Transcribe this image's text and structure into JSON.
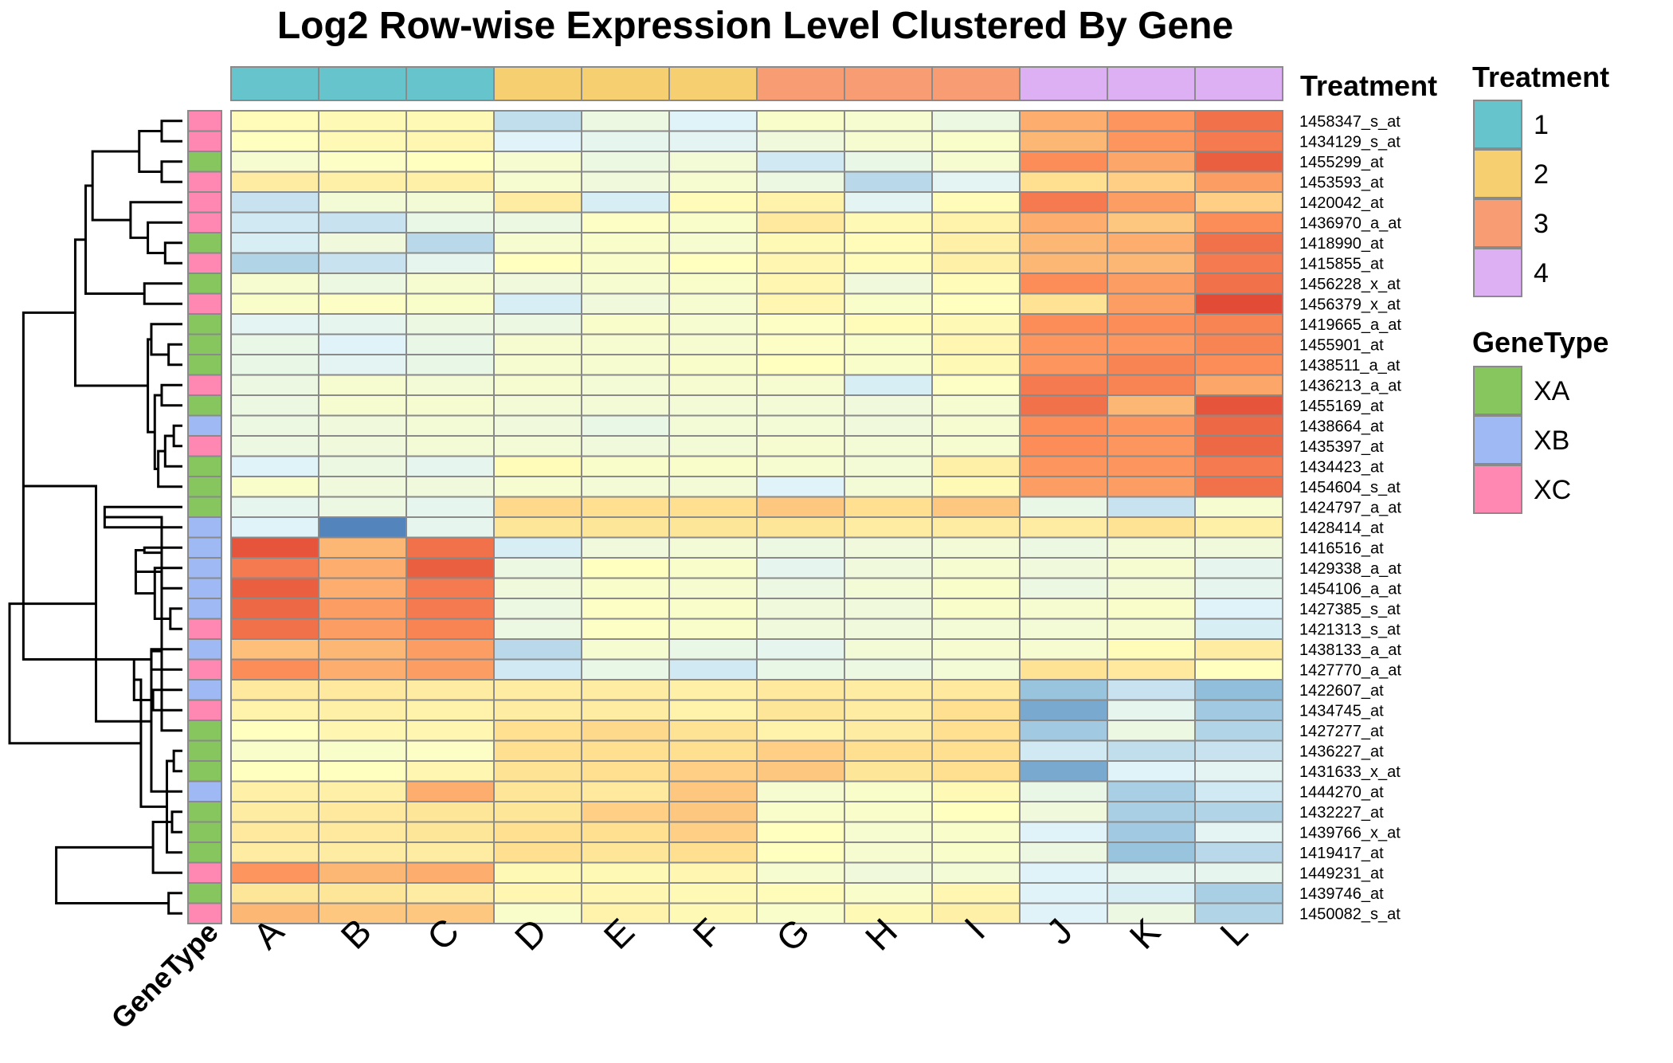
{
  "chart_data": {
    "type": "heatmap",
    "title": "Log2 Row-wise Expression Level Clustered By Gene",
    "columns": [
      "A",
      "B",
      "C",
      "D",
      "E",
      "F",
      "G",
      "H",
      "I",
      "J",
      "K",
      "L"
    ],
    "rows": [
      "1458347_s_at",
      "1434129_s_at",
      "1455299_at",
      "1453593_at",
      "1420042_at",
      "1436970_a_at",
      "1418990_at",
      "1415855_at",
      "1456228_x_at",
      "1456379_x_at",
      "1419665_a_at",
      "1455901_at",
      "1438511_a_at",
      "1436213_a_at",
      "1455169_at",
      "1438664_at",
      "1435397_at",
      "1434423_at",
      "1454604_s_at",
      "1424797_a_at",
      "1428414_at",
      "1416516_at",
      "1429338_a_at",
      "1454106_a_at",
      "1427385_s_at",
      "1421313_s_at",
      "1438133_a_at",
      "1427770_a_at",
      "1422607_at",
      "1434745_at",
      "1427277_at",
      "1436227_at",
      "1431633_x_at",
      "1444270_at",
      "1432227_at",
      "1439766_x_at",
      "1419417_at",
      "1449231_at",
      "1439746_at",
      "1450082_s_at"
    ],
    "value_range": [
      -3,
      3
    ],
    "values": [
      [
        0.1,
        0.2,
        0.2,
        -1.4,
        -0.6,
        -1.0,
        -0.2,
        -0.3,
        -0.6,
        1.6,
        1.9,
        2.3
      ],
      [
        0.0,
        0.2,
        0.3,
        -1.0,
        -0.8,
        -0.9,
        -0.5,
        -0.3,
        -0.2,
        1.5,
        1.9,
        2.2
      ],
      [
        -0.3,
        -0.1,
        0.0,
        -0.3,
        -0.6,
        -0.4,
        -1.2,
        -0.7,
        -0.3,
        2.0,
        1.7,
        2.5
      ],
      [
        0.6,
        0.5,
        0.5,
        -0.3,
        -0.5,
        -0.3,
        -0.6,
        -1.5,
        -0.9,
        1.0,
        1.2,
        1.8
      ],
      [
        -1.3,
        -0.4,
        -0.4,
        0.6,
        -1.1,
        0.1,
        0.4,
        -0.9,
        0.1,
        2.2,
        1.8,
        1.2
      ],
      [
        -1.2,
        -1.3,
        -0.7,
        -0.6,
        -0.1,
        -0.2,
        0.7,
        0.2,
        0.4,
        1.6,
        1.3,
        2.0
      ],
      [
        -1.1,
        -0.5,
        -1.5,
        -0.3,
        -0.2,
        -0.3,
        0.2,
        0.1,
        0.5,
        1.5,
        1.6,
        2.3
      ],
      [
        -1.6,
        -1.3,
        -0.8,
        0.0,
        -0.2,
        0.0,
        0.3,
        0.1,
        0.5,
        1.5,
        1.5,
        2.2
      ],
      [
        -0.3,
        -0.6,
        -0.3,
        -0.5,
        -0.3,
        -0.2,
        0.3,
        -0.5,
        0.1,
        2.0,
        1.8,
        2.3
      ],
      [
        -0.2,
        -0.1,
        -0.2,
        -1.1,
        -0.5,
        -0.3,
        0.3,
        -0.2,
        0.0,
        0.9,
        1.8,
        2.7
      ],
      [
        -0.9,
        -0.8,
        -0.6,
        -0.6,
        -0.2,
        -0.3,
        -0.1,
        0.1,
        0.2,
        2.0,
        2.0,
        2.1
      ],
      [
        -0.7,
        -1.0,
        -0.7,
        -0.3,
        -0.3,
        -0.3,
        -0.1,
        -0.2,
        0.3,
        1.9,
        1.9,
        2.1
      ],
      [
        -0.7,
        -0.9,
        -0.7,
        -0.3,
        -0.3,
        -0.2,
        0.0,
        -0.2,
        0.2,
        1.9,
        2.1,
        2.0
      ],
      [
        -0.6,
        -0.3,
        -0.4,
        -0.3,
        -0.4,
        -0.3,
        -0.3,
        -1.1,
        -0.1,
        2.2,
        2.1,
        1.7
      ],
      [
        -0.6,
        -0.3,
        -0.3,
        -0.4,
        -0.4,
        -0.4,
        -0.4,
        -0.5,
        -0.3,
        2.3,
        1.5,
        2.6
      ],
      [
        -0.6,
        -0.5,
        -0.4,
        -0.5,
        -0.7,
        -0.4,
        -0.4,
        -0.5,
        -0.3,
        2.0,
        1.9,
        2.4
      ],
      [
        -0.6,
        -0.5,
        -0.4,
        -0.4,
        -0.5,
        -0.4,
        -0.3,
        -0.4,
        -0.3,
        2.0,
        1.9,
        2.4
      ],
      [
        -1.0,
        -0.6,
        -0.8,
        0.1,
        -0.2,
        -0.2,
        -0.3,
        -0.4,
        0.5,
        1.9,
        1.9,
        2.2
      ],
      [
        -0.2,
        -0.5,
        -0.5,
        -0.3,
        -0.4,
        -0.4,
        -1.0,
        -0.4,
        0.2,
        1.8,
        1.8,
        2.3
      ],
      [
        -0.8,
        -0.6,
        -0.8,
        1.1,
        1.0,
        1.0,
        1.3,
        1.0,
        1.3,
        -0.7,
        -1.3,
        -0.3
      ],
      [
        -1.0,
        -2.8,
        -0.8,
        0.8,
        0.8,
        0.8,
        0.8,
        0.6,
        0.6,
        0.6,
        0.9,
        0.5
      ],
      [
        2.6,
        1.5,
        2.3,
        -1.1,
        -0.5,
        -0.4,
        -0.6,
        -0.5,
        -0.4,
        -0.6,
        -0.4,
        -0.5
      ],
      [
        2.2,
        1.6,
        2.5,
        -0.6,
        0.0,
        -0.2,
        -0.8,
        -0.5,
        -0.3,
        -0.5,
        -0.3,
        -0.8
      ],
      [
        2.5,
        1.6,
        2.2,
        -0.5,
        -0.2,
        -0.3,
        -0.6,
        -0.4,
        -0.2,
        -0.6,
        -0.4,
        -0.8
      ],
      [
        2.4,
        1.8,
        2.2,
        -0.6,
        -0.1,
        -0.2,
        -0.5,
        -0.5,
        -0.2,
        -0.3,
        -0.2,
        -1.0
      ],
      [
        2.3,
        1.8,
        2.1,
        -0.6,
        -0.1,
        -0.2,
        -0.5,
        -0.5,
        -0.4,
        -0.4,
        -0.3,
        -1.1
      ],
      [
        1.4,
        1.5,
        1.8,
        -1.5,
        -0.3,
        -0.7,
        -0.8,
        -0.4,
        -0.3,
        -0.3,
        0.1,
        0.6
      ],
      [
        2.0,
        1.6,
        1.8,
        -1.2,
        -0.7,
        -1.2,
        -0.7,
        -0.6,
        -0.4,
        0.9,
        0.7,
        0.0
      ],
      [
        0.7,
        0.7,
        0.6,
        0.6,
        0.6,
        0.5,
        0.7,
        0.6,
        0.7,
        -1.9,
        -1.3,
        -2.0
      ],
      [
        0.4,
        0.5,
        0.4,
        0.6,
        0.6,
        0.4,
        0.8,
        0.6,
        1.0,
        -2.3,
        -0.8,
        -1.8
      ],
      [
        0.0,
        0.3,
        0.3,
        1.0,
        1.1,
        0.9,
        0.4,
        0.6,
        1.0,
        -1.8,
        -0.6,
        -1.6
      ],
      [
        -0.2,
        -0.2,
        -0.1,
        1.0,
        1.0,
        1.0,
        1.2,
        1.0,
        1.0,
        -1.2,
        -1.4,
        -1.3
      ],
      [
        0.0,
        0.0,
        0.3,
        0.9,
        1.0,
        1.2,
        1.3,
        0.8,
        1.0,
        -2.3,
        -1.0,
        -0.9
      ],
      [
        0.5,
        0.5,
        1.6,
        0.8,
        0.7,
        1.3,
        -0.3,
        -0.2,
        0.2,
        -0.7,
        -1.7,
        -1.2
      ],
      [
        0.6,
        0.7,
        0.8,
        0.8,
        1.2,
        1.3,
        -0.2,
        -0.2,
        0.0,
        -0.5,
        -1.7,
        -1.6
      ],
      [
        0.7,
        0.7,
        0.8,
        1.0,
        1.0,
        1.2,
        0.0,
        -0.3,
        -0.2,
        -1.0,
        -1.8,
        -0.9
      ],
      [
        0.6,
        0.6,
        0.6,
        1.0,
        0.8,
        1.0,
        0.0,
        -0.3,
        -0.2,
        -0.6,
        -1.9,
        -1.5
      ],
      [
        1.9,
        1.5,
        1.6,
        0.2,
        0.2,
        0.3,
        -0.3,
        -0.5,
        -0.4,
        -1.0,
        -0.8,
        -0.8
      ],
      [
        0.8,
        0.8,
        0.6,
        0.3,
        0.3,
        0.2,
        0.1,
        -0.2,
        0.3,
        -1.0,
        -1.1,
        -1.7
      ],
      [
        1.5,
        1.3,
        1.3,
        -0.2,
        0.4,
        0.2,
        -0.2,
        0.2,
        0.5,
        -1.0,
        -0.6,
        -1.6
      ]
    ],
    "treatment": {
      "label": "Treatment",
      "values": [
        "1",
        "1",
        "1",
        "2",
        "2",
        "2",
        "3",
        "3",
        "3",
        "4",
        "4",
        "4"
      ],
      "legend": [
        {
          "name": "1",
          "color": "#66C5CC"
        },
        {
          "name": "2",
          "color": "#F6CF71"
        },
        {
          "name": "3",
          "color": "#F89C74"
        },
        {
          "name": "4",
          "color": "#DCB0F2"
        }
      ]
    },
    "genetype": {
      "label": "GeneType",
      "values": [
        "XC",
        "XC",
        "XA",
        "XC",
        "XC",
        "XC",
        "XA",
        "XC",
        "XA",
        "XC",
        "XA",
        "XA",
        "XA",
        "XC",
        "XA",
        "XB",
        "XC",
        "XA",
        "XA",
        "XA",
        "XB",
        "XB",
        "XB",
        "XB",
        "XB",
        "XC",
        "XB",
        "XC",
        "XB",
        "XC",
        "XA",
        "XA",
        "XA",
        "XB",
        "XA",
        "XA",
        "XA",
        "XC",
        "XA",
        "XC"
      ],
      "legend": [
        {
          "name": "XA",
          "color": "#87C55F"
        },
        {
          "name": "XB",
          "color": "#9EB9F3"
        },
        {
          "name": "XC",
          "color": "#FE88B1"
        }
      ]
    },
    "palette": [
      "#4575B4",
      "#91BFDB",
      "#E0F3F8",
      "#FFFFBF",
      "#FEE090",
      "#FC8D59",
      "#D73027"
    ],
    "dendrogram": {
      "type": "rows",
      "merges": [
        [
          0,
          1,
          0.12
        ],
        [
          2,
          3,
          0.12
        ],
        [
          40,
          41,
          0.25
        ],
        [
          6,
          7,
          0.1
        ],
        [
          5,
          43,
          0.2
        ],
        [
          4,
          44,
          0.3
        ],
        [
          42,
          45,
          0.52
        ],
        [
          8,
          9,
          0.22
        ],
        [
          46,
          47,
          0.56
        ],
        [
          11,
          12,
          0.08
        ],
        [
          10,
          49,
          0.18
        ],
        [
          13,
          14,
          0.12
        ],
        [
          15,
          16,
          0.05
        ],
        [
          52,
          17,
          0.1
        ],
        [
          53,
          18,
          0.14
        ],
        [
          51,
          54,
          0.16
        ],
        [
          50,
          55,
          0.2
        ],
        [
          48,
          56,
          0.62
        ],
        [
          19,
          20,
          0.45
        ],
        [
          24,
          25,
          0.07
        ],
        [
          23,
          58,
          0.12
        ],
        [
          22,
          59,
          0.16
        ],
        [
          21,
          60,
          0.22
        ],
        [
          26,
          27,
          0.18
        ],
        [
          61,
          62,
          0.27
        ],
        [
          57,
          63,
          0.92
        ],
        [
          28,
          29,
          0.17
        ],
        [
          31,
          32,
          0.05
        ],
        [
          30,
          64,
          0.12
        ],
        [
          63,
          66,
          0.28
        ],
        [
          34,
          35,
          0.06
        ],
        [
          67,
          36,
          0.09
        ],
        [
          33,
          68,
          0.18
        ],
        [
          38,
          39,
          0.08
        ],
        [
          37,
          70,
          0.17
        ],
        [
          69,
          71,
          0.24
        ],
        [
          65,
          72,
          0.5
        ],
        [
          73,
          74,
          0.73
        ],
        [
          75,
          76,
          1.0
        ]
      ]
    }
  }
}
